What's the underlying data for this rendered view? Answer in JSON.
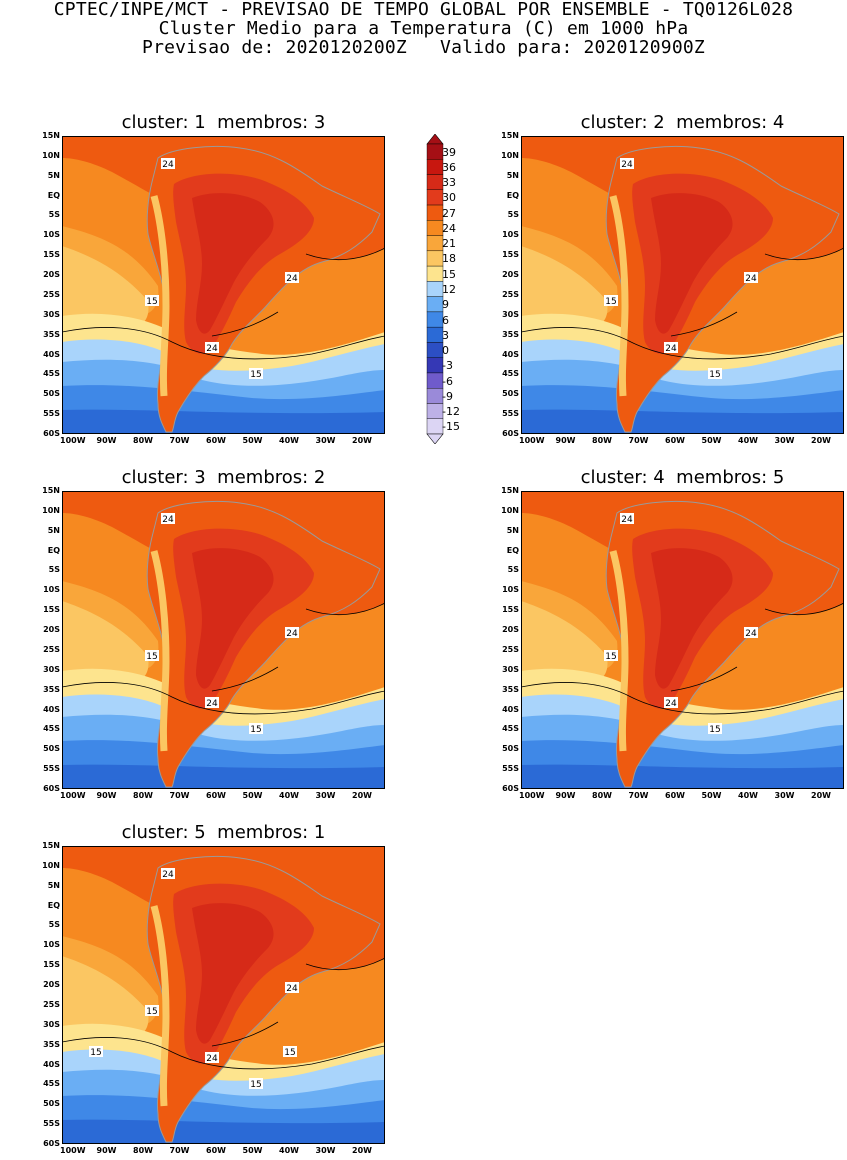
{
  "header": {
    "line1": "CPTEC/INPE/MCT - PREVISAO DE TEMPO GLOBAL POR ENSEMBLE - TQ0126L028",
    "line2": "Cluster Medio para a Temperatura (C) em 1000 hPa",
    "line3": "Previsao de: 2020120200Z   Valido para: 2020120900Z"
  },
  "axes": {
    "lat_labels": [
      "15N",
      "10N",
      "5N",
      "EQ",
      "5S",
      "10S",
      "15S",
      "20S",
      "25S",
      "30S",
      "35S",
      "40S",
      "45S",
      "50S",
      "55S",
      "60S"
    ],
    "lon_labels": [
      "100W",
      "90W",
      "80W",
      "70W",
      "60W",
      "50W",
      "40W",
      "30W",
      "20W"
    ]
  },
  "colorbar": {
    "labels": [
      "39",
      "36",
      "33",
      "30",
      "27",
      "24",
      "21",
      "18",
      "15",
      "12",
      "9",
      "6",
      "3",
      "0",
      "-3",
      "-6",
      "-9",
      "-12",
      "-15"
    ],
    "colors": [
      "#a50f15",
      "#c8170f",
      "#d62a18",
      "#e23b1c",
      "#ee5a10",
      "#f68920",
      "#f9a63a",
      "#fbc662",
      "#fde48e",
      "#a9d4fb",
      "#6aaef4",
      "#3f88e7",
      "#2b6ad6",
      "#2c4fc4",
      "#3538b5",
      "#6f5bcb",
      "#9a8ad9",
      "#bdb1e7",
      "#dcd5f4"
    ]
  },
  "panels": [
    {
      "title": "cluster: 1  membros: 3",
      "labels": {
        "a": "24",
        "b": "15",
        "c": "24",
        "d": "24",
        "e": "15"
      }
    },
    {
      "title": "cluster: 2  membros: 4",
      "labels": {
        "a": "24",
        "b": "15",
        "c": "24",
        "d": "24",
        "e": "15"
      }
    },
    {
      "title": "cluster: 3  membros: 2",
      "labels": {
        "a": "24",
        "b": "15",
        "c": "24",
        "d": "24",
        "e": "15"
      }
    },
    {
      "title": "cluster: 4  membros: 5",
      "labels": {
        "a": "24",
        "b": "15",
        "c": "24",
        "d": "24",
        "e": "15"
      }
    },
    {
      "title": "cluster: 5  membros: 1",
      "labels": {
        "a": "24",
        "b": "15",
        "c": "24",
        "d": "24",
        "e": "15",
        "f": "15",
        "g": "15"
      }
    }
  ]
}
